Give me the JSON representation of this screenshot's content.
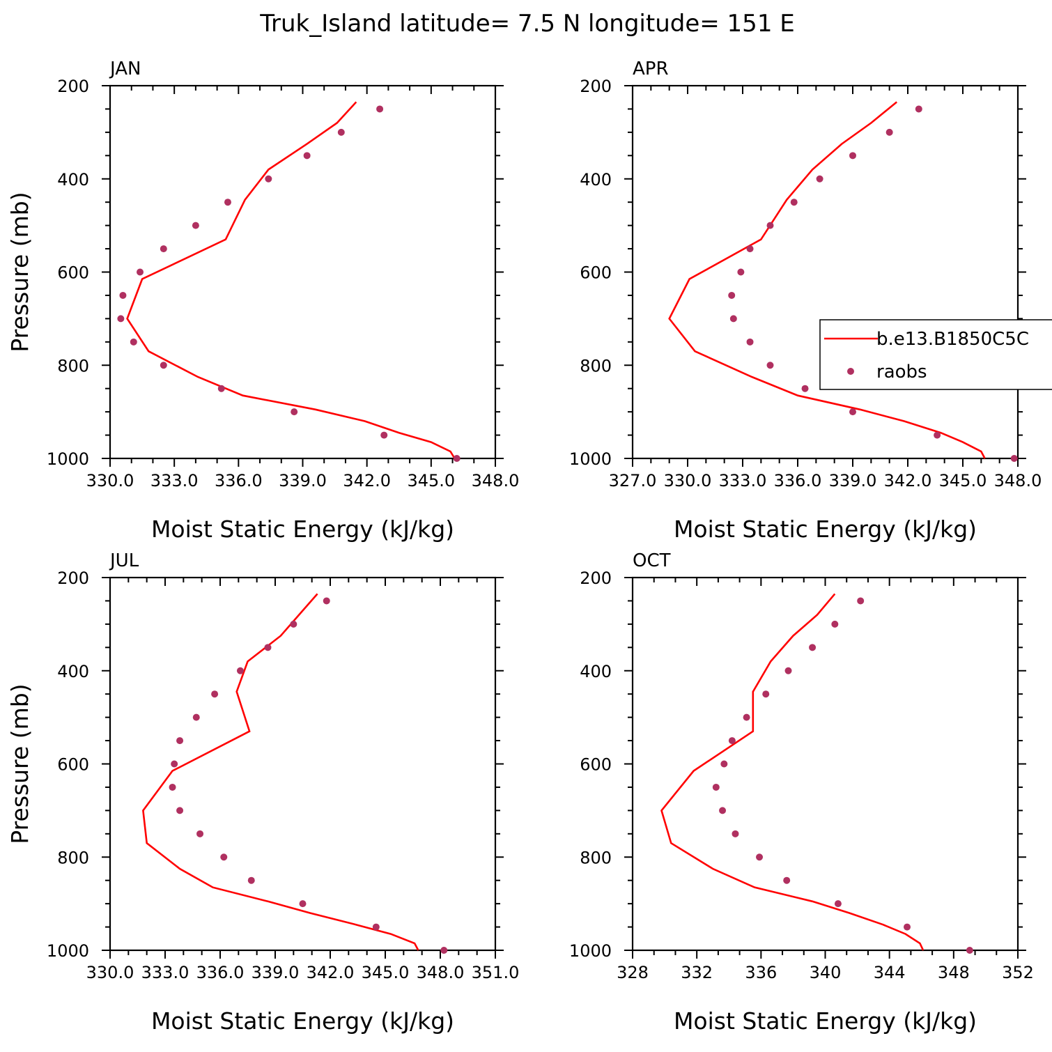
{
  "figure": {
    "title": "Truk_Island  latitude= 7.5 N longitude= 151 E"
  },
  "legend": {
    "entries": [
      "b.e13.B1850C5C",
      "raobs"
    ]
  },
  "colors": {
    "model": "#ff0000",
    "obs": "#b03060"
  },
  "chart_data": [
    {
      "type": "line",
      "title": "JAN",
      "xlabel": "Moist Static Energy (kJ/kg)",
      "ylabel": "Pressure (mb)",
      "xlim": [
        330,
        348
      ],
      "ylim": [
        1000,
        200
      ],
      "xticks": [
        330,
        333,
        336,
        339,
        342,
        345,
        348
      ],
      "xtick_labels": [
        "330.0",
        "333.0",
        "336.0",
        "339.0",
        "342.0",
        "345.0",
        "348.0"
      ],
      "yticks": [
        200,
        400,
        600,
        800,
        1000
      ],
      "ytick_labels": [
        "200",
        "400",
        "600",
        "800",
        "1000"
      ],
      "series": [
        {
          "name": "b.e13.B1850C5C",
          "style": "line",
          "x": [
            341.5,
            340.6,
            339.2,
            337.4,
            336.3,
            335.4,
            331.5,
            330.8,
            331.8,
            334.1,
            336.2,
            339.6,
            341.9,
            343.5,
            345.0,
            345.9,
            346.1
          ],
          "y": [
            235,
            280,
            325,
            380,
            445,
            530,
            615,
            700,
            770,
            825,
            865,
            895,
            920,
            945,
            965,
            985,
            1000
          ]
        },
        {
          "name": "raobs",
          "style": "points",
          "x": [
            342.6,
            340.8,
            339.2,
            337.4,
            335.5,
            334.0,
            332.5,
            331.4,
            330.6,
            330.5,
            331.1,
            332.5,
            335.2,
            338.6,
            342.8,
            346.2
          ],
          "y": [
            250,
            300,
            350,
            400,
            450,
            500,
            550,
            600,
            650,
            700,
            750,
            800,
            850,
            900,
            950,
            1000
          ]
        }
      ]
    },
    {
      "type": "line",
      "title": "APR",
      "xlabel": "Moist Static Energy (kJ/kg)",
      "ylabel": "",
      "xlim": [
        327,
        348
      ],
      "ylim": [
        1000,
        200
      ],
      "xticks": [
        327,
        330,
        333,
        336,
        339,
        342,
        345,
        348
      ],
      "xtick_labels": [
        "327.0",
        "330.0",
        "333.0",
        "336.0",
        "339.0",
        "342.0",
        "345.0",
        "348.0"
      ],
      "yticks": [
        200,
        400,
        600,
        800,
        1000
      ],
      "ytick_labels": [
        "200",
        "400",
        "600",
        "800",
        "1000"
      ],
      "series": [
        {
          "name": "b.e13.B1850C5C",
          "style": "line",
          "x": [
            341.4,
            340.0,
            338.4,
            336.8,
            335.4,
            334.0,
            330.1,
            329.0,
            330.4,
            333.5,
            336.0,
            339.4,
            341.8,
            343.8,
            345.0,
            346.0,
            346.2
          ],
          "y": [
            235,
            280,
            325,
            380,
            445,
            530,
            615,
            700,
            770,
            825,
            865,
            895,
            920,
            945,
            965,
            985,
            1000
          ]
        },
        {
          "name": "raobs",
          "style": "points",
          "x": [
            342.6,
            341.0,
            339.0,
            337.2,
            335.8,
            334.5,
            333.4,
            332.9,
            332.4,
            332.5,
            333.4,
            334.5,
            336.4,
            339.0,
            343.6,
            347.8
          ],
          "y": [
            250,
            300,
            350,
            400,
            450,
            500,
            550,
            600,
            650,
            700,
            750,
            800,
            850,
            900,
            950,
            1000
          ]
        }
      ]
    },
    {
      "type": "line",
      "title": "JUL",
      "xlabel": "Moist Static Energy (kJ/kg)",
      "ylabel": "Pressure (mb)",
      "xlim": [
        330,
        351
      ],
      "ylim": [
        1000,
        200
      ],
      "xticks": [
        330,
        333,
        336,
        339,
        342,
        345,
        348,
        351
      ],
      "xtick_labels": [
        "330.0",
        "333.0",
        "336.0",
        "339.0",
        "342.0",
        "345.0",
        "348.0",
        "351.0"
      ],
      "yticks": [
        200,
        400,
        600,
        800,
        1000
      ],
      "ytick_labels": [
        "200",
        "400",
        "600",
        "800",
        "1000"
      ],
      "series": [
        {
          "name": "b.e13.B1850C5C",
          "style": "line",
          "x": [
            341.3,
            340.3,
            339.3,
            337.5,
            336.9,
            337.6,
            333.4,
            331.8,
            332.0,
            333.8,
            335.6,
            338.6,
            340.9,
            343.4,
            345.3,
            346.6,
            346.8
          ],
          "y": [
            235,
            280,
            325,
            380,
            445,
            530,
            615,
            700,
            770,
            825,
            865,
            895,
            920,
            945,
            965,
            985,
            1000
          ]
        },
        {
          "name": "raobs",
          "style": "points",
          "x": [
            341.8,
            340.0,
            338.6,
            337.1,
            335.7,
            334.7,
            333.8,
            333.5,
            333.4,
            333.8,
            334.9,
            336.2,
            337.7,
            340.5,
            344.5,
            348.2
          ],
          "y": [
            250,
            300,
            350,
            400,
            450,
            500,
            550,
            600,
            650,
            700,
            750,
            800,
            850,
            900,
            950,
            1000
          ]
        }
      ]
    },
    {
      "type": "line",
      "title": "OCT",
      "xlabel": "Moist Static Energy (kJ/kg)",
      "ylabel": "",
      "xlim": [
        328,
        352
      ],
      "ylim": [
        1000,
        200
      ],
      "xticks": [
        328,
        332,
        336,
        340,
        344,
        348,
        352
      ],
      "xtick_labels": [
        "328",
        "332",
        "336",
        "340",
        "344",
        "348",
        "352"
      ],
      "yticks": [
        200,
        400,
        600,
        800,
        1000
      ],
      "ytick_labels": [
        "200",
        "400",
        "600",
        "800",
        "1000"
      ],
      "series": [
        {
          "name": "b.e13.B1850C5C",
          "style": "line",
          "x": [
            340.6,
            339.5,
            338.0,
            336.6,
            335.5,
            335.5,
            331.8,
            329.8,
            330.4,
            333.0,
            335.6,
            339.2,
            341.5,
            343.6,
            345.0,
            345.9,
            346.1
          ],
          "y": [
            235,
            280,
            325,
            380,
            445,
            530,
            615,
            700,
            770,
            825,
            865,
            895,
            920,
            945,
            965,
            985,
            1000
          ]
        },
        {
          "name": "raobs",
          "style": "points",
          "x": [
            342.2,
            340.6,
            339.2,
            337.7,
            336.3,
            335.1,
            334.2,
            333.7,
            333.2,
            333.6,
            334.4,
            335.9,
            337.6,
            340.8,
            345.1,
            349.0
          ],
          "y": [
            250,
            300,
            350,
            400,
            450,
            500,
            550,
            600,
            650,
            700,
            750,
            800,
            850,
            900,
            950,
            1000
          ]
        }
      ]
    }
  ]
}
